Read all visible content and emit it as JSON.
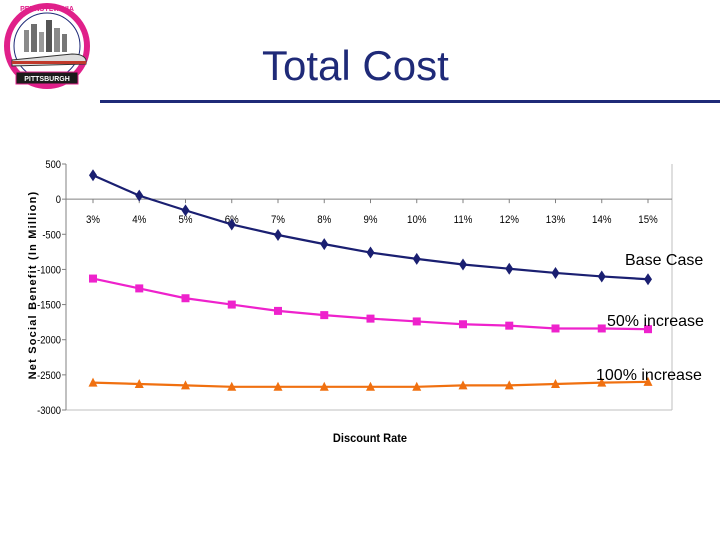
{
  "slide": {
    "title": "Total Cost",
    "title_color": "#1f2a78"
  },
  "logo": {
    "top_text": "MAGLEV · PENNSYLVANIA",
    "bottom_text": "PITTSBURGH",
    "ring_color": "#e0208a",
    "train_color": "#c0392b"
  },
  "callouts": {
    "base": "Base Case",
    "increase_50": "50% increase",
    "increase_100": "100% increase"
  },
  "chart_data": {
    "type": "line",
    "title": "",
    "xlabel": "Discount Rate",
    "ylabel": "Net Social Benefit (In Million)",
    "ylim": [
      -3000,
      500
    ],
    "yticks": [
      500,
      0,
      -500,
      -1000,
      -1500,
      -2000,
      -2500,
      -3000
    ],
    "grid": false,
    "categories": [
      "3%",
      "4%",
      "5%",
      "6%",
      "7%",
      "8%",
      "9%",
      "10%",
      "11%",
      "12%",
      "13%",
      "14%",
      "15%"
    ],
    "series": [
      {
        "name": "Base Case",
        "color": "#1a1f71",
        "marker": "diamond",
        "values": [
          340,
          50,
          -160,
          -360,
          -510,
          -640,
          -760,
          -850,
          -930,
          -990,
          -1050,
          -1100,
          -1140
        ]
      },
      {
        "name": "50% increase",
        "color": "#ee22cc",
        "marker": "square",
        "values": [
          -1130,
          -1270,
          -1410,
          -1500,
          -1590,
          -1650,
          -1700,
          -1740,
          -1780,
          -1800,
          -1840,
          -1840,
          -1850
        ]
      },
      {
        "name": "100% increase",
        "color": "#f07010",
        "marker": "triangle",
        "values": [
          -2610,
          -2630,
          -2650,
          -2670,
          -2670,
          -2670,
          -2670,
          -2670,
          -2650,
          -2650,
          -2630,
          -2610,
          -2600
        ]
      }
    ]
  }
}
